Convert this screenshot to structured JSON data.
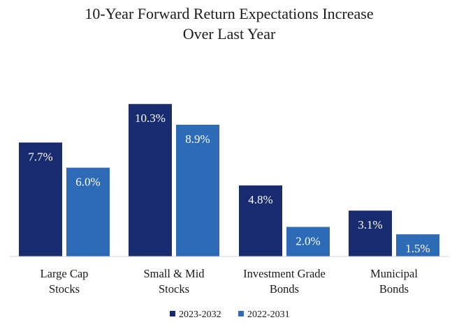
{
  "chart_data": {
    "type": "bar",
    "title_lines": [
      "10-Year Forward Return Expectations Increase",
      "Over Last Year"
    ],
    "categories": [
      [
        "Large Cap",
        "Stocks"
      ],
      [
        "Small & Mid",
        "Stocks"
      ],
      [
        "Investment Grade",
        "Bonds"
      ],
      [
        "Municipal",
        "Bonds"
      ]
    ],
    "series": [
      {
        "name": "2023-2032",
        "color": "#172b6e",
        "values": [
          7.7,
          10.3,
          4.8,
          3.1
        ],
        "labels": [
          "7.7%",
          "10.3%",
          "4.8%",
          "3.1%"
        ]
      },
      {
        "name": "2022-2031",
        "color": "#2e6bb7",
        "values": [
          6.0,
          8.9,
          2.0,
          1.5
        ],
        "labels": [
          "6.0%",
          "8.9%",
          "2.0%",
          "1.5%"
        ]
      }
    ],
    "ylim": [
      0,
      11.3
    ],
    "grid": false,
    "legend": "bottom-center"
  }
}
